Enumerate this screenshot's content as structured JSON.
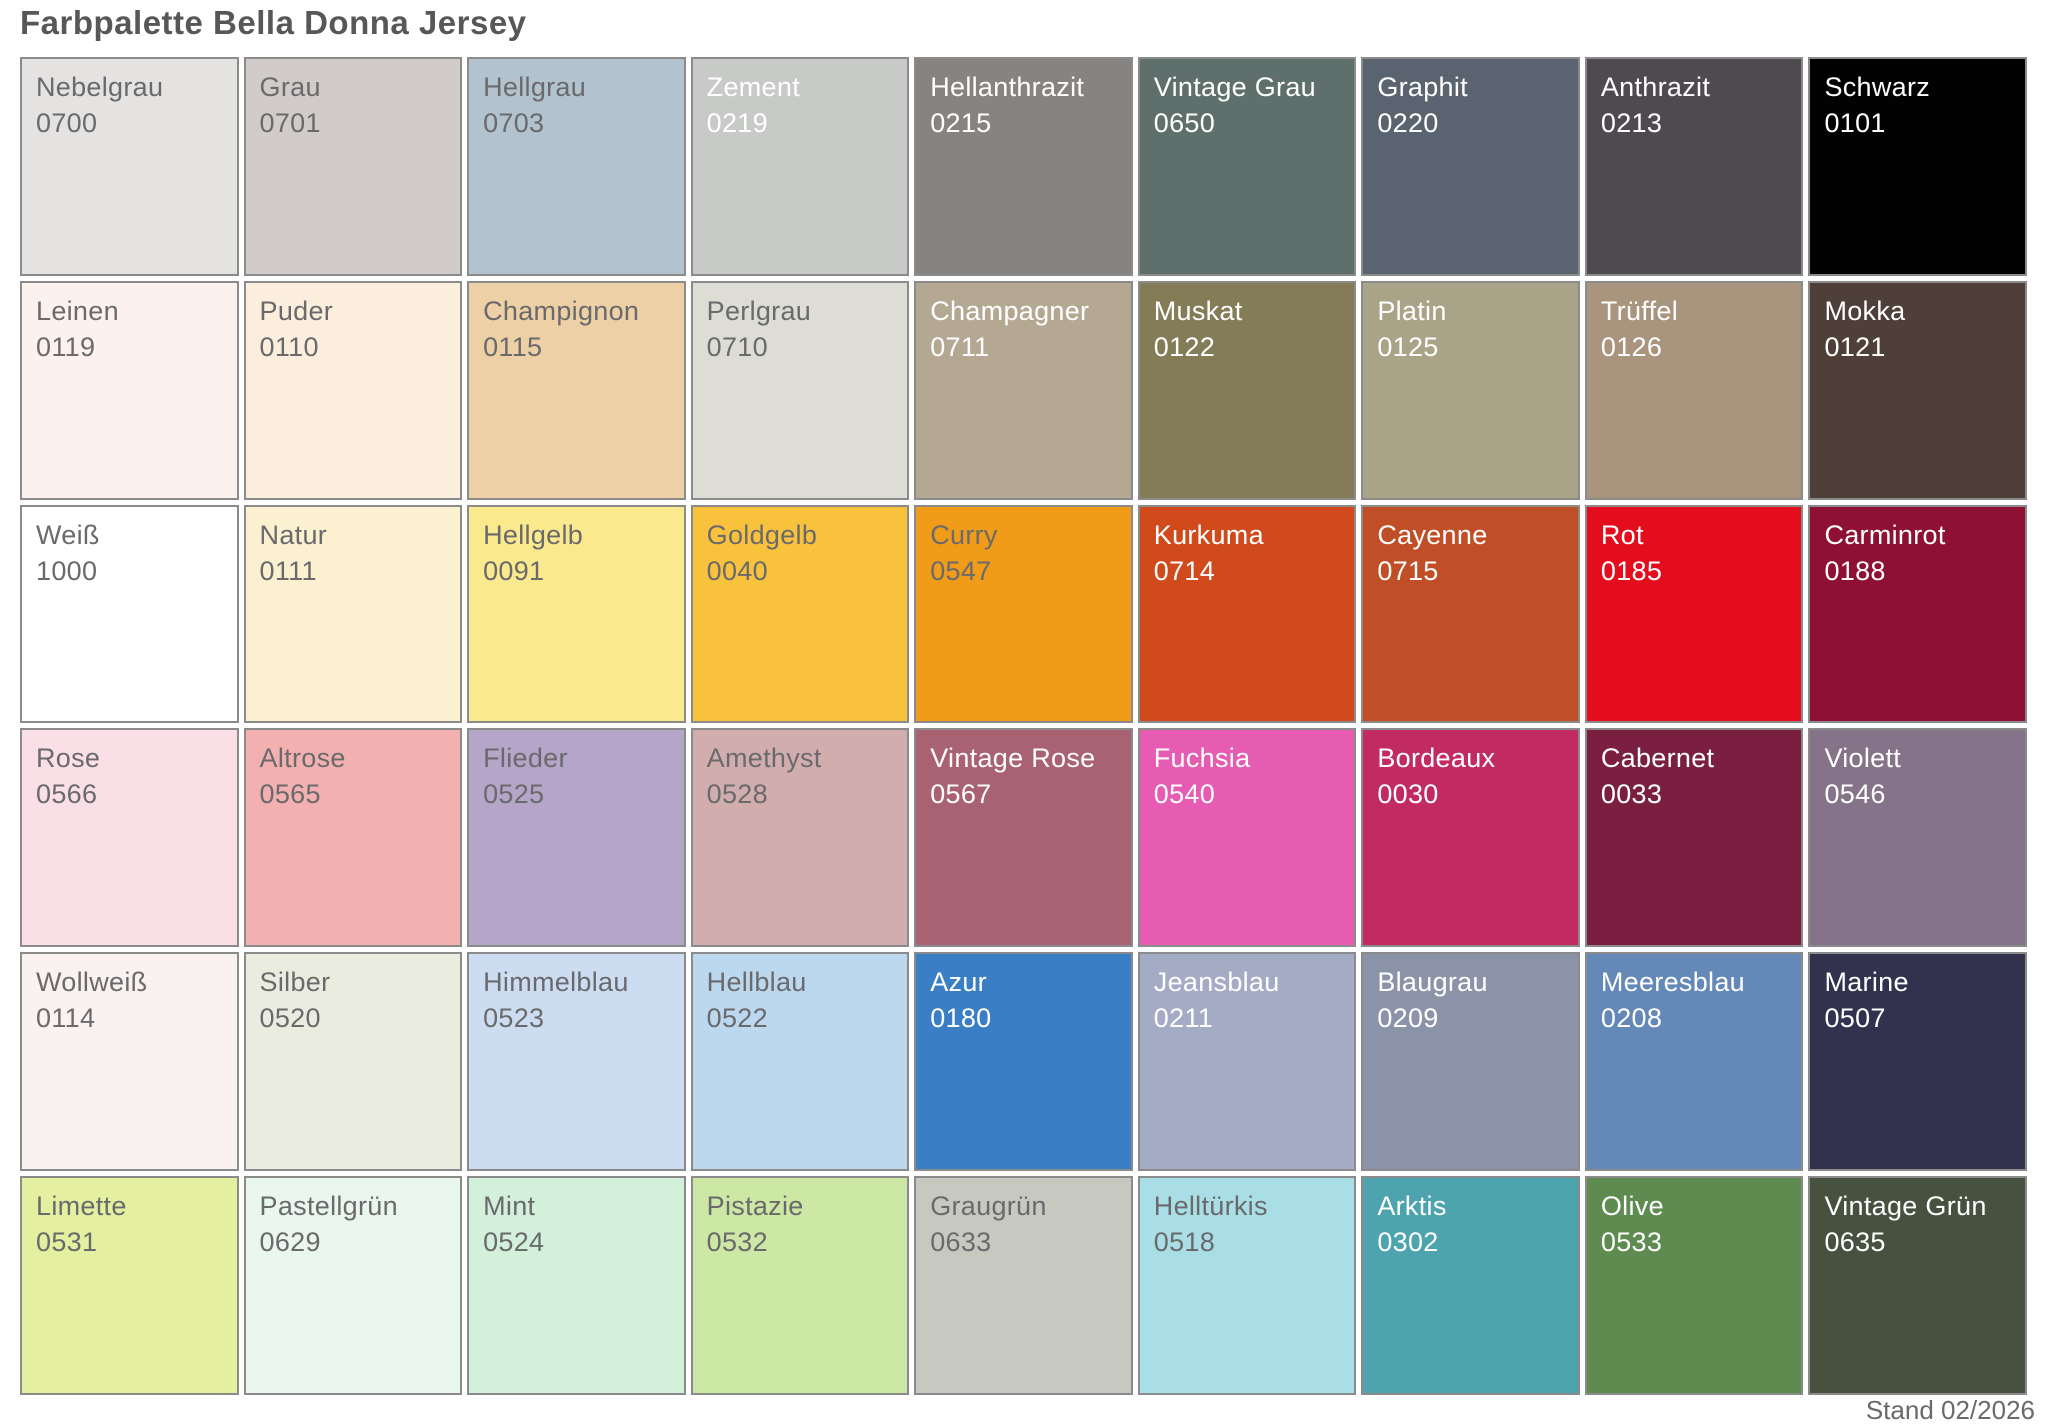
{
  "title": "Farbpalette Bella Donna Jersey",
  "footer": "Stand 02/2026",
  "colors": {
    "background": "#ffffff",
    "title_color": "#57575a",
    "border": "#8b8b8b",
    "label_on_light": "#6a6a6c",
    "label_on_dark": "#ffffff",
    "footer_color": "#6a6a6c"
  },
  "palette": {
    "rows": [
      [
        {
          "name": "Nebelgrau",
          "code": "0700",
          "bg": "#e4e3e1",
          "text": "#6a6a6c"
        },
        {
          "name": "Grau",
          "code": "0701",
          "bg": "#d1ccc9",
          "text": "#6a6a6c"
        },
        {
          "name": "Hellgrau",
          "code": "0703",
          "bg": "#b2c2ce",
          "text": "#6a6a6c"
        },
        {
          "name": "Zement",
          "code": "0219",
          "bg": "#c7cac7",
          "text": "#ffffff"
        },
        {
          "name": "Hellanthrazit",
          "code": "0215",
          "bg": "#868380",
          "text": "#ffffff"
        },
        {
          "name": "Vintage Grau",
          "code": "0650",
          "bg": "#5f6f6c",
          "text": "#ffffff"
        },
        {
          "name": "Graphit",
          "code": "0220",
          "bg": "#5a6470",
          "text": "#ffffff"
        },
        {
          "name": "Anthrazit",
          "code": "0213",
          "bg": "#4f4a4f",
          "text": "#ffffff"
        },
        {
          "name": "Schwarz",
          "code": "0101",
          "bg": "#020202",
          "text": "#ffffff"
        }
      ],
      [
        {
          "name": "Leinen",
          "code": "0119",
          "bg": "#fdf1ee",
          "text": "#6a6a6c"
        },
        {
          "name": "Puder",
          "code": "0110",
          "bg": "#fbeedd",
          "text": "#6a6a6c"
        },
        {
          "name": "Champignon",
          "code": "0115",
          "bg": "#edd0a5",
          "text": "#6a6a6c"
        },
        {
          "name": "Perlgrau",
          "code": "0710",
          "bg": "#dddcd5",
          "text": "#6a6a6c"
        },
        {
          "name": "Champagner",
          "code": "0711",
          "bg": "#b5a893",
          "text": "#ffffff"
        },
        {
          "name": "Muskat",
          "code": "0122",
          "bg": "#847c57",
          "text": "#ffffff"
        },
        {
          "name": "Platin",
          "code": "0125",
          "bg": "#a9a488",
          "text": "#ffffff"
        },
        {
          "name": "Trüffel",
          "code": "0126",
          "bg": "#a9947e",
          "text": "#ffffff"
        },
        {
          "name": "Mokka",
          "code": "0121",
          "bg": "#4e4038",
          "text": "#ffffff"
        }
      ],
      [
        {
          "name": "Weiß",
          "code": "1000",
          "bg": "#ffffff",
          "text": "#6a6a6c"
        },
        {
          "name": "Natur",
          "code": "0111",
          "bg": "#fbf0d0",
          "text": "#6a6a6c"
        },
        {
          "name": "Hellgelb",
          "code": "0091",
          "bg": "#fae98d",
          "text": "#6a6a6c"
        },
        {
          "name": "Goldgelb",
          "code": "0040",
          "bg": "#f9c23d",
          "text": "#6a6a6c"
        },
        {
          "name": "Curry",
          "code": "0547",
          "bg": "#f09c18",
          "text": "#6a6a6c"
        },
        {
          "name": "Kurkuma",
          "code": "0714",
          "bg": "#d04a1c",
          "text": "#ffffff"
        },
        {
          "name": "Cayenne",
          "code": "0715",
          "bg": "#c04e26",
          "text": "#ffffff"
        },
        {
          "name": "Rot",
          "code": "0185",
          "bg": "#e30d1d",
          "text": "#ffffff"
        },
        {
          "name": "Carminrot",
          "code": "0188",
          "bg": "#8e1033",
          "text": "#ffffff"
        }
      ],
      [
        {
          "name": "Rose",
          "code": "0566",
          "bg": "#fbdfe7",
          "text": "#6a6a6c"
        },
        {
          "name": "Altrose",
          "code": "0565",
          "bg": "#f2b0b0",
          "text": "#6a6a6c"
        },
        {
          "name": "Flieder",
          "code": "0525",
          "bg": "#b4a5c9",
          "text": "#6a6a6c"
        },
        {
          "name": "Amethyst",
          "code": "0528",
          "bg": "#d2adad",
          "text": "#6a6a6c"
        },
        {
          "name": "Vintage Rose",
          "code": "0567",
          "bg": "#a96271",
          "text": "#ffffff"
        },
        {
          "name": "Fuchsia",
          "code": "0540",
          "bg": "#e55cb2",
          "text": "#ffffff"
        },
        {
          "name": "Bordeaux",
          "code": "0030",
          "bg": "#c22a62",
          "text": "#ffffff"
        },
        {
          "name": "Cabernet",
          "code": "0033",
          "bg": "#7a1f40",
          "text": "#ffffff"
        },
        {
          "name": "Violett",
          "code": "0546",
          "bg": "#847389",
          "text": "#ffffff"
        }
      ],
      [
        {
          "name": "Wollweiß",
          "code": "0114",
          "bg": "#faf2f0",
          "text": "#6a6a6c"
        },
        {
          "name": "Silber",
          "code": "0520",
          "bg": "#ebece0",
          "text": "#6a6a6c"
        },
        {
          "name": "Himmelblau",
          "code": "0523",
          "bg": "#ccddf2",
          "text": "#6a6a6c"
        },
        {
          "name": "Hellblau",
          "code": "0522",
          "bg": "#bcd8ef",
          "text": "#6a6a6c"
        },
        {
          "name": "Azur",
          "code": "0180",
          "bg": "#3a7ec5",
          "text": "#ffffff"
        },
        {
          "name": "Jeansblau",
          "code": "0211",
          "bg": "#a3abc5",
          "text": "#ffffff"
        },
        {
          "name": "Blaugrau",
          "code": "0209",
          "bg": "#8b93a8",
          "text": "#ffffff"
        },
        {
          "name": "Meeresblau",
          "code": "0208",
          "bg": "#6489b8",
          "text": "#ffffff"
        },
        {
          "name": "Marine",
          "code": "0507",
          "bg": "#32324e",
          "text": "#ffffff"
        }
      ],
      [
        {
          "name": "Limette",
          "code": "0531",
          "bg": "#e4f0a0",
          "text": "#6a6a6c"
        },
        {
          "name": "Pastellgrün",
          "code": "0629",
          "bg": "#e9f7ee",
          "text": "#6a6a6c"
        },
        {
          "name": "Mint",
          "code": "0524",
          "bg": "#d2f0da",
          "text": "#6a6a6c"
        },
        {
          "name": "Pistazie",
          "code": "0532",
          "bg": "#cde8a5",
          "text": "#6a6a6c"
        },
        {
          "name": "Graugrün",
          "code": "0633",
          "bg": "#c7c9c1",
          "text": "#6a6a6c"
        },
        {
          "name": "Helltürkis",
          "code": "0518",
          "bg": "#aadee6",
          "text": "#6a6a6c"
        },
        {
          "name": "Arktis",
          "code": "0302",
          "bg": "#4da4ae",
          "text": "#ffffff"
        },
        {
          "name": "Olive",
          "code": "0533",
          "bg": "#5d8b50",
          "text": "#ffffff"
        },
        {
          "name": "Vintage Grün",
          "code": "0635",
          "bg": "#46513f",
          "text": "#ffffff"
        }
      ]
    ]
  }
}
